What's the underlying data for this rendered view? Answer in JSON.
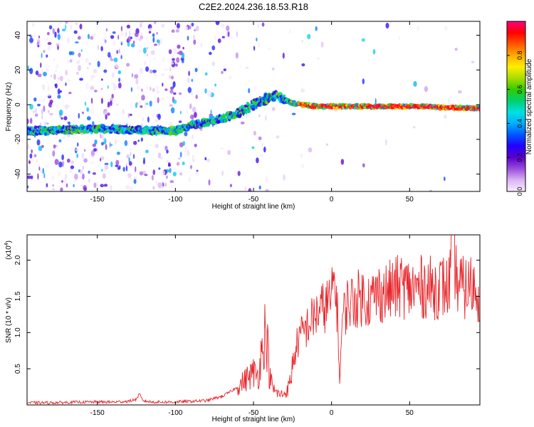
{
  "chart_data": [
    {
      "type": "heatmap",
      "title": "C2E2.2024.236.18.53.R18",
      "xlabel": "Height of straight line (km)",
      "ylabel": "Frequency (Hz)",
      "xlim": [
        -195,
        95
      ],
      "ylim": [
        -50,
        48
      ],
      "xticks": [
        -150,
        -100,
        -50,
        0,
        50
      ],
      "yticks": [
        -40,
        -20,
        0,
        20,
        40
      ],
      "colorbar": {
        "label": "Normalized spectral amplitude",
        "range": [
          0,
          1
        ],
        "ticks": [
          0.0,
          0.2,
          0.4,
          0.6,
          0.8
        ],
        "colormap": [
          "#f8f0ff",
          "#d9b3f2",
          "#9b4ddb",
          "#5a00cc",
          "#2200ff",
          "#0055ff",
          "#00b0ff",
          "#00e0e0",
          "#00d070",
          "#33cc00",
          "#aadd00",
          "#ffee00",
          "#ffaa00",
          "#ff5500",
          "#ff0000",
          "#ff0080"
        ]
      },
      "ridge": {
        "x": [
          -195,
          -180,
          -160,
          -140,
          -120,
          -100,
          -90,
          -80,
          -70,
          -60,
          -50,
          -45,
          -40,
          -35,
          -30,
          -25,
          -20,
          -10,
          0,
          20,
          40,
          60,
          80,
          95
        ],
        "y": [
          -15,
          -15,
          -14,
          -14,
          -15,
          -15,
          -12,
          -10,
          -8,
          -5,
          0,
          2,
          4,
          5,
          3,
          1,
          0,
          -1,
          -1,
          -1,
          -1,
          -1,
          -2,
          -2
        ]
      },
      "grid": false
    },
    {
      "type": "line",
      "xlabel": "Height of straight line (km)",
      "ylabel": "SNR (10 * v/v)",
      "yscale_note": "(x10",
      "yscale_exp": "4",
      "xlim": [
        -195,
        95
      ],
      "ylim": [
        0,
        2.35
      ],
      "xticks": [
        -150,
        -100,
        -50,
        0,
        50
      ],
      "yticks": [
        0.5,
        1.0,
        1.5,
        2.0
      ],
      "ytick_labels": [
        "0.5",
        "1.0",
        "1.5",
        "2.0"
      ],
      "line_color": "#e8262b",
      "series": [
        {
          "x": [
            -195,
            -180,
            -160,
            -140,
            -130,
            -125,
            -123,
            -121,
            -115,
            -100,
            -90,
            -80,
            -75,
            -70,
            -65,
            -60,
            -55,
            -50,
            -47,
            -45,
            -43,
            -41,
            -40,
            -38,
            -36,
            -33,
            -30,
            -27,
            -25,
            -22,
            -20,
            -15,
            -10,
            -5,
            0,
            2,
            4,
            5,
            7,
            10,
            15,
            20,
            25,
            30,
            35,
            40,
            45,
            50,
            55,
            60,
            65,
            70,
            75,
            78,
            80,
            85,
            90,
            95
          ],
          "y": [
            0.03,
            0.03,
            0.04,
            0.04,
            0.05,
            0.08,
            0.15,
            0.06,
            0.04,
            0.04,
            0.05,
            0.06,
            0.09,
            0.12,
            0.18,
            0.25,
            0.35,
            0.45,
            0.4,
            0.7,
            1.02,
            0.85,
            0.45,
            0.25,
            0.18,
            0.14,
            0.16,
            0.25,
            0.55,
            0.85,
            0.95,
            1.1,
            1.25,
            1.35,
            1.45,
            1.75,
            1.25,
            0.3,
            1.2,
            1.4,
            1.45,
            1.5,
            1.45,
            1.55,
            1.55,
            1.6,
            1.65,
            1.6,
            1.6,
            1.65,
            1.6,
            1.65,
            1.6,
            2.3,
            1.7,
            1.6,
            1.65,
            1.55
          ]
        }
      ],
      "grid": false
    }
  ]
}
